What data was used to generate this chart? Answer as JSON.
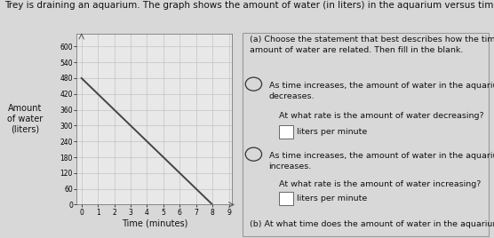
{
  "title": "Trey is draining an aquarium. The graph shows the amount of water (in liters) in the aquarium versus time (in minutes).",
  "xlabel": "Time (minutes)",
  "ylabel": "Amount\nof water\n(liters)",
  "x_data": [
    0,
    8
  ],
  "y_data": [
    480,
    0
  ],
  "xlim": [
    -0.3,
    9.2
  ],
  "ylim": [
    0,
    650
  ],
  "x_ticks": [
    0,
    1,
    2,
    3,
    4,
    5,
    6,
    7,
    8,
    9
  ],
  "y_ticks": [
    0,
    60,
    120,
    180,
    240,
    300,
    360,
    420,
    480,
    540,
    600
  ],
  "line_color": "#444444",
  "line_width": 1.4,
  "grid_color": "#bbbbbb",
  "bg_color": "#d8d8d8",
  "plot_bg_color": "#e8e8e8",
  "right_panel_bg": "#f0f0f0",
  "title_fontsize": 7.5,
  "axis_label_fontsize": 7,
  "tick_fontsize": 5.5,
  "right_text": {
    "a_header": "(a) Choose the statement that best describes how the time and\namount of water are related. Then fill in the blank.",
    "option1": "As time increases, the amount of water in the aquarium\ndecreases.",
    "question1": "At what rate is the amount of water decreasing?",
    "answer1": "liters per minute",
    "option2": "As time increases, the amount of water in the aquarium\nincreases.",
    "question2": "At what rate is the amount of water increasing?",
    "answer2": "liters per minute",
    "b_header": "(b) At what time does the amount of water in the aquarium"
  }
}
